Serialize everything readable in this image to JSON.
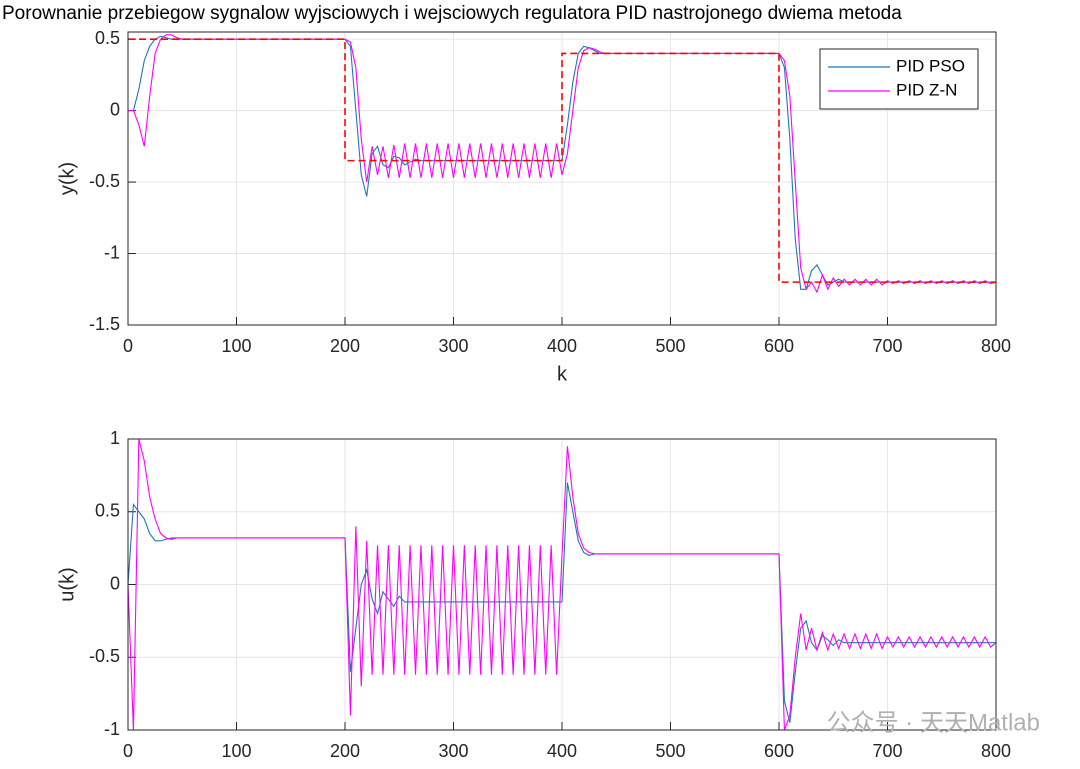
{
  "chart_data": [
    {
      "type": "line",
      "title": "Porownanie przebiegow sygnalow wyjsciowych i wejsciowych regulatora PID nastrojonego dwiema metoda",
      "xlabel": "k",
      "ylabel": "y(k)",
      "xlim": [
        0,
        800
      ],
      "xticks": [
        0,
        100,
        200,
        300,
        400,
        500,
        600,
        700,
        800
      ],
      "ylim": [
        -1.5,
        0.55
      ],
      "yticks": [
        -1.5,
        -1,
        -0.5,
        0,
        0.5
      ],
      "grid": true,
      "legend": "northeast",
      "x": [
        0,
        5,
        10,
        15,
        20,
        25,
        30,
        35,
        40,
        45,
        50,
        55,
        60,
        65,
        70,
        75,
        80,
        85,
        90,
        95,
        100,
        105,
        110,
        115,
        120,
        125,
        130,
        135,
        140,
        145,
        150,
        155,
        160,
        165,
        170,
        175,
        180,
        185,
        190,
        195,
        200,
        205,
        210,
        215,
        220,
        225,
        230,
        235,
        240,
        245,
        250,
        255,
        260,
        265,
        270,
        275,
        280,
        285,
        290,
        295,
        300,
        305,
        310,
        315,
        320,
        325,
        330,
        335,
        340,
        345,
        350,
        355,
        360,
        365,
        370,
        375,
        380,
        385,
        390,
        395,
        400,
        405,
        410,
        415,
        420,
        425,
        430,
        435,
        440,
        445,
        450,
        455,
        460,
        465,
        470,
        475,
        480,
        485,
        490,
        495,
        500,
        505,
        510,
        515,
        520,
        525,
        530,
        535,
        540,
        545,
        550,
        555,
        560,
        565,
        570,
        575,
        580,
        585,
        590,
        595,
        600,
        605,
        610,
        615,
        620,
        625,
        630,
        635,
        640,
        645,
        650,
        655,
        660,
        665,
        670,
        675,
        680,
        685,
        690,
        695,
        700,
        705,
        710,
        715,
        720,
        725,
        730,
        735,
        740,
        745,
        750,
        755,
        760,
        765,
        770,
        775,
        780,
        785,
        790,
        795,
        800
      ],
      "series": [
        {
          "name": "PID PSO",
          "color": "#1f78b4",
          "values": [
            0,
            0,
            0.15,
            0.35,
            0.45,
            0.5,
            0.52,
            0.51,
            0.5,
            0.5,
            0.5,
            0.5,
            0.5,
            0.5,
            0.5,
            0.5,
            0.5,
            0.5,
            0.5,
            0.5,
            0.5,
            0.5,
            0.5,
            0.5,
            0.5,
            0.5,
            0.5,
            0.5,
            0.5,
            0.5,
            0.5,
            0.5,
            0.5,
            0.5,
            0.5,
            0.5,
            0.5,
            0.5,
            0.5,
            0.5,
            0.5,
            0.45,
            0,
            -0.45,
            -0.6,
            -0.3,
            -0.25,
            -0.38,
            -0.4,
            -0.32,
            -0.33,
            -0.38,
            -0.36,
            -0.34,
            -0.35,
            -0.35,
            -0.35,
            -0.35,
            -0.35,
            -0.35,
            -0.35,
            -0.35,
            -0.35,
            -0.35,
            -0.35,
            -0.35,
            -0.35,
            -0.35,
            -0.35,
            -0.35,
            -0.35,
            -0.35,
            -0.35,
            -0.35,
            -0.35,
            -0.35,
            -0.35,
            -0.35,
            -0.35,
            -0.35,
            -0.35,
            -0.1,
            0.2,
            0.4,
            0.45,
            0.44,
            0.42,
            0.4,
            0.4,
            0.4,
            0.4,
            0.4,
            0.4,
            0.4,
            0.4,
            0.4,
            0.4,
            0.4,
            0.4,
            0.4,
            0.4,
            0.4,
            0.4,
            0.4,
            0.4,
            0.4,
            0.4,
            0.4,
            0.4,
            0.4,
            0.4,
            0.4,
            0.4,
            0.4,
            0.4,
            0.4,
            0.4,
            0.4,
            0.4,
            0.4,
            0.4,
            0.3,
            -0.2,
            -0.9,
            -1.25,
            -1.25,
            -1.12,
            -1.08,
            -1.15,
            -1.22,
            -1.2,
            -1.18,
            -1.2,
            -1.2,
            -1.2,
            -1.2,
            -1.2,
            -1.2,
            -1.2,
            -1.2,
            -1.2,
            -1.2,
            -1.2,
            -1.2,
            -1.2,
            -1.2,
            -1.2,
            -1.2,
            -1.2,
            -1.2,
            -1.2,
            -1.2,
            -1.2,
            -1.2,
            -1.2,
            -1.2,
            -1.2,
            -1.2,
            -1.2,
            -1.2,
            -1.2
          ]
        },
        {
          "name": "PID Z-N",
          "color": "#ff00ff",
          "values": [
            0,
            0,
            -0.1,
            -0.25,
            0.1,
            0.4,
            0.5,
            0.53,
            0.53,
            0.51,
            0.5,
            0.5,
            0.5,
            0.5,
            0.5,
            0.5,
            0.5,
            0.5,
            0.5,
            0.5,
            0.5,
            0.5,
            0.5,
            0.5,
            0.5,
            0.5,
            0.5,
            0.5,
            0.5,
            0.5,
            0.5,
            0.5,
            0.5,
            0.5,
            0.5,
            0.5,
            0.5,
            0.5,
            0.5,
            0.5,
            0.5,
            0.48,
            0.3,
            -0.2,
            -0.5,
            -0.25,
            -0.45,
            -0.25,
            -0.47,
            -0.24,
            -0.47,
            -0.23,
            -0.47,
            -0.23,
            -0.47,
            -0.23,
            -0.47,
            -0.23,
            -0.47,
            -0.23,
            -0.47,
            -0.23,
            -0.47,
            -0.23,
            -0.47,
            -0.23,
            -0.47,
            -0.23,
            -0.47,
            -0.23,
            -0.47,
            -0.23,
            -0.47,
            -0.23,
            -0.47,
            -0.23,
            -0.47,
            -0.23,
            -0.47,
            -0.23,
            -0.45,
            -0.3,
            0,
            0.3,
            0.42,
            0.44,
            0.43,
            0.41,
            0.4,
            0.4,
            0.4,
            0.4,
            0.4,
            0.4,
            0.4,
            0.4,
            0.4,
            0.4,
            0.4,
            0.4,
            0.4,
            0.4,
            0.4,
            0.4,
            0.4,
            0.4,
            0.4,
            0.4,
            0.4,
            0.4,
            0.4,
            0.4,
            0.4,
            0.4,
            0.4,
            0.4,
            0.4,
            0.4,
            0.4,
            0.4,
            0.4,
            0.35,
            0.1,
            -0.5,
            -1.1,
            -1.25,
            -1.2,
            -1.27,
            -1.15,
            -1.25,
            -1.17,
            -1.23,
            -1.18,
            -1.22,
            -1.18,
            -1.22,
            -1.18,
            -1.22,
            -1.18,
            -1.22,
            -1.19,
            -1.21,
            -1.19,
            -1.21,
            -1.19,
            -1.21,
            -1.19,
            -1.21,
            -1.19,
            -1.21,
            -1.19,
            -1.21,
            -1.19,
            -1.21,
            -1.19,
            -1.21,
            -1.19,
            -1.21,
            -1.19,
            -1.21,
            -1.2
          ]
        },
        {
          "color": "#ff0000",
          "dashed": true,
          "x": [
            0,
            200,
            200,
            400,
            400,
            600,
            600,
            800
          ],
          "values": [
            0.5,
            0.5,
            -0.35,
            -0.35,
            0.4,
            0.4,
            -1.2,
            -1.2
          ]
        }
      ]
    },
    {
      "type": "line",
      "ylabel": "u(k)",
      "annotation": "公众号 · 天天Matlab",
      "xlim": [
        0,
        800
      ],
      "xticks": [
        0,
        100,
        200,
        300,
        400,
        500,
        600,
        700,
        800
      ],
      "ylim": [
        -1,
        1
      ],
      "yticks": [
        -1,
        -0.5,
        0,
        0.5,
        1
      ],
      "grid": true,
      "x": [
        0,
        5,
        10,
        15,
        20,
        25,
        30,
        35,
        40,
        45,
        50,
        55,
        60,
        65,
        70,
        75,
        80,
        85,
        90,
        95,
        100,
        105,
        110,
        115,
        120,
        125,
        130,
        135,
        140,
        145,
        150,
        155,
        160,
        165,
        170,
        175,
        180,
        185,
        190,
        195,
        200,
        205,
        210,
        215,
        220,
        225,
        230,
        235,
        240,
        245,
        250,
        255,
        260,
        265,
        270,
        275,
        280,
        285,
        290,
        295,
        300,
        305,
        310,
        315,
        320,
        325,
        330,
        335,
        340,
        345,
        350,
        355,
        360,
        365,
        370,
        375,
        380,
        385,
        390,
        395,
        400,
        405,
        410,
        415,
        420,
        425,
        430,
        435,
        440,
        445,
        450,
        455,
        460,
        465,
        470,
        475,
        480,
        485,
        490,
        495,
        500,
        505,
        510,
        515,
        520,
        525,
        530,
        535,
        540,
        545,
        550,
        555,
        560,
        565,
        570,
        575,
        580,
        585,
        590,
        595,
        600,
        605,
        610,
        615,
        620,
        625,
        630,
        635,
        640,
        645,
        650,
        655,
        660,
        665,
        670,
        675,
        680,
        685,
        690,
        695,
        700,
        705,
        710,
        715,
        720,
        725,
        730,
        735,
        740,
        745,
        750,
        755,
        760,
        765,
        770,
        775,
        780,
        785,
        790,
        795,
        800
      ],
      "series": [
        {
          "color": "#1f78b4",
          "values": [
            0,
            0.55,
            0.5,
            0.45,
            0.35,
            0.3,
            0.3,
            0.31,
            0.32,
            0.32,
            0.32,
            0.32,
            0.32,
            0.32,
            0.32,
            0.32,
            0.32,
            0.32,
            0.32,
            0.32,
            0.32,
            0.32,
            0.32,
            0.32,
            0.32,
            0.32,
            0.32,
            0.32,
            0.32,
            0.32,
            0.32,
            0.32,
            0.32,
            0.32,
            0.32,
            0.32,
            0.32,
            0.32,
            0.32,
            0.32,
            0.32,
            -0.6,
            -0.3,
            0,
            0.1,
            -0.1,
            -0.2,
            -0.05,
            -0.1,
            -0.15,
            -0.08,
            -0.12,
            -0.12,
            -0.12,
            -0.12,
            -0.12,
            -0.12,
            -0.12,
            -0.12,
            -0.12,
            -0.12,
            -0.12,
            -0.12,
            -0.12,
            -0.12,
            -0.12,
            -0.12,
            -0.12,
            -0.12,
            -0.12,
            -0.12,
            -0.12,
            -0.12,
            -0.12,
            -0.12,
            -0.12,
            -0.12,
            -0.12,
            -0.12,
            -0.12,
            -0.12,
            0.7,
            0.5,
            0.3,
            0.22,
            0.2,
            0.21,
            0.21,
            0.21,
            0.21,
            0.21,
            0.21,
            0.21,
            0.21,
            0.21,
            0.21,
            0.21,
            0.21,
            0.21,
            0.21,
            0.21,
            0.21,
            0.21,
            0.21,
            0.21,
            0.21,
            0.21,
            0.21,
            0.21,
            0.21,
            0.21,
            0.21,
            0.21,
            0.21,
            0.21,
            0.21,
            0.21,
            0.21,
            0.21,
            0.21,
            0.21,
            -0.8,
            -0.95,
            -0.6,
            -0.3,
            -0.25,
            -0.4,
            -0.45,
            -0.35,
            -0.38,
            -0.42,
            -0.38,
            -0.4,
            -0.4,
            -0.4,
            -0.4,
            -0.4,
            -0.4,
            -0.4,
            -0.4,
            -0.4,
            -0.4,
            -0.4,
            -0.4,
            -0.4,
            -0.4,
            -0.4,
            -0.4,
            -0.4,
            -0.4,
            -0.4,
            -0.4,
            -0.4,
            -0.4,
            -0.4,
            -0.4,
            -0.4,
            -0.4,
            -0.4,
            -0.4,
            -0.4
          ]
        },
        {
          "color": "#ff00ff",
          "values": [
            0,
            -1,
            1,
            0.85,
            0.6,
            0.45,
            0.35,
            0.32,
            0.31,
            0.32,
            0.32,
            0.32,
            0.32,
            0.32,
            0.32,
            0.32,
            0.32,
            0.32,
            0.32,
            0.32,
            0.32,
            0.32,
            0.32,
            0.32,
            0.32,
            0.32,
            0.32,
            0.32,
            0.32,
            0.32,
            0.32,
            0.32,
            0.32,
            0.32,
            0.32,
            0.32,
            0.32,
            0.32,
            0.32,
            0.32,
            0.32,
            -0.9,
            0.4,
            -0.7,
            0.3,
            -0.62,
            0.27,
            -0.62,
            0.27,
            -0.62,
            0.27,
            -0.62,
            0.27,
            -0.62,
            0.27,
            -0.62,
            0.27,
            -0.62,
            0.27,
            -0.62,
            0.27,
            -0.62,
            0.27,
            -0.62,
            0.27,
            -0.62,
            0.27,
            -0.62,
            0.27,
            -0.62,
            0.27,
            -0.62,
            0.27,
            -0.62,
            0.27,
            -0.62,
            0.27,
            -0.62,
            0.27,
            -0.62,
            0.2,
            0.95,
            0.6,
            0.35,
            0.25,
            0.22,
            0.21,
            0.21,
            0.21,
            0.21,
            0.21,
            0.21,
            0.21,
            0.21,
            0.21,
            0.21,
            0.21,
            0.21,
            0.21,
            0.21,
            0.21,
            0.21,
            0.21,
            0.21,
            0.21,
            0.21,
            0.21,
            0.21,
            0.21,
            0.21,
            0.21,
            0.21,
            0.21,
            0.21,
            0.21,
            0.21,
            0.21,
            0.21,
            0.21,
            0.21,
            0.21,
            -1,
            -0.9,
            -0.5,
            -0.2,
            -0.45,
            -0.3,
            -0.45,
            -0.33,
            -0.45,
            -0.34,
            -0.44,
            -0.34,
            -0.44,
            -0.34,
            -0.44,
            -0.34,
            -0.44,
            -0.34,
            -0.44,
            -0.36,
            -0.43,
            -0.36,
            -0.43,
            -0.36,
            -0.43,
            -0.36,
            -0.43,
            -0.36,
            -0.43,
            -0.36,
            -0.43,
            -0.36,
            -0.43,
            -0.36,
            -0.43,
            -0.36,
            -0.43,
            -0.36,
            -0.43,
            -0.4
          ]
        }
      ]
    }
  ]
}
